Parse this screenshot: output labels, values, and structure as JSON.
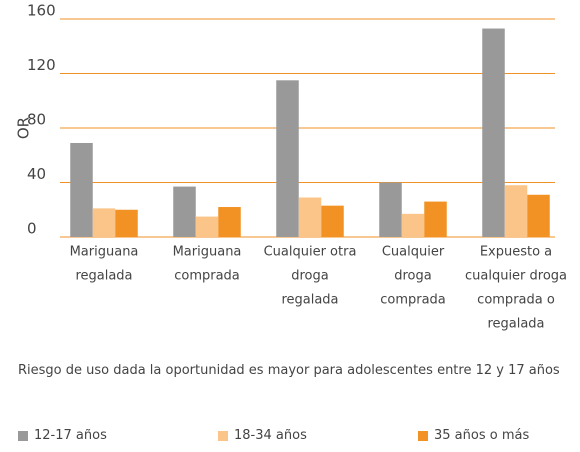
{
  "chart_data": {
    "type": "bar",
    "y_label": "OR",
    "categories": [
      [
        "Mariguana",
        "regalada"
      ],
      [
        "Mariguana",
        "comprada"
      ],
      [
        "Cualquier otra",
        "droga",
        "regalada"
      ],
      [
        "Cualquier",
        "droga",
        "comprada"
      ],
      [
        "Expuesto a",
        "cualquier droga",
        "comprada o",
        "regalada"
      ]
    ],
    "series": [
      {
        "name": "12-17 años",
        "color": "#999999",
        "values": [
          69,
          37,
          115,
          40,
          153
        ]
      },
      {
        "name": "18-34 años",
        "color": "#fbc58a",
        "values": [
          21,
          15,
          29,
          17,
          38
        ]
      },
      {
        "name": "35 años o más",
        "color": "#f39224",
        "values": [
          20,
          22,
          23,
          26,
          31
        ]
      }
    ],
    "ylim": [
      0,
      160
    ],
    "yticks": [
      0,
      40,
      80,
      120,
      160
    ],
    "grid": true,
    "legend": "bottom",
    "note": "Riesgo de uso dada la oportunidad es mayor para adolescentes entre 12 y 17 años"
  }
}
